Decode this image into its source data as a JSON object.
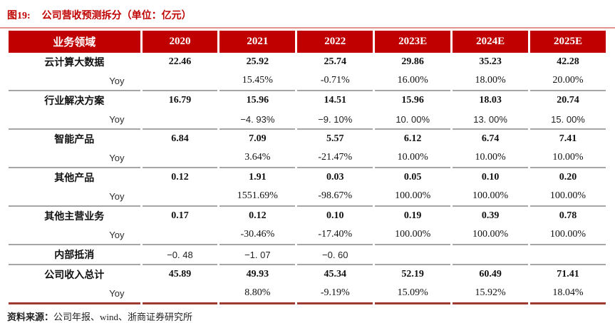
{
  "figure": {
    "label": "图19:",
    "title": "公司营收预测拆分（单位：亿元）"
  },
  "accent_colors": {
    "header_background": "#c00000",
    "title_text": "#c00000",
    "title_rule": "#e2948d",
    "group_separator": "#a6a6a6",
    "table_bottom_border": "#9e3a32"
  },
  "table": {
    "columns": [
      "业务领域",
      "2020",
      "2021",
      "2022",
      "2023E",
      "2024E",
      "2025E"
    ],
    "rows": [
      {
        "name": "云计算大数据",
        "type": "category",
        "sep": false,
        "values": [
          "22.46",
          "25.92",
          "25.74",
          "29.86",
          "35.23",
          "42.28"
        ]
      },
      {
        "name": "Yoy",
        "type": "yoy",
        "sep": true,
        "values": [
          "",
          "15.45%",
          "-0.71%",
          "16.00%",
          "18.00%",
          "20.00%"
        ]
      },
      {
        "name": "行业解决方案",
        "type": "category",
        "sep": false,
        "values": [
          "16.79",
          "15.96",
          "14.51",
          "15.96",
          "18.03",
          "20.74"
        ]
      },
      {
        "name": "Yoy",
        "type": "yoy-alt",
        "sep": true,
        "values": [
          "",
          "−4. 93%",
          "−9. 10%",
          "10. 00%",
          "13. 00%",
          "15. 00%"
        ]
      },
      {
        "name": "智能产品",
        "type": "category",
        "sep": false,
        "values": [
          "6.84",
          "7.09",
          "5.57",
          "6.12",
          "6.74",
          "7.41"
        ]
      },
      {
        "name": "Yoy",
        "type": "yoy",
        "sep": true,
        "values": [
          "",
          "3.64%",
          "-21.47%",
          "10.00%",
          "10.00%",
          "10.00%"
        ]
      },
      {
        "name": "其他产品",
        "type": "category",
        "sep": false,
        "values": [
          "0.12",
          "1.91",
          "0.03",
          "0.05",
          "0.10",
          "0.20"
        ]
      },
      {
        "name": "Yoy",
        "type": "yoy",
        "sep": true,
        "values": [
          "",
          "1551.69%",
          "-98.67%",
          "100.00%",
          "100.00%",
          "100.00%"
        ]
      },
      {
        "name": "其他主营业务",
        "type": "category",
        "sep": false,
        "values": [
          "0.17",
          "0.12",
          "0.10",
          "0.19",
          "0.39",
          "0.78"
        ]
      },
      {
        "name": "Yoy",
        "type": "yoy",
        "sep": true,
        "values": [
          "",
          "-30.46%",
          "-17.40%",
          "100.00%",
          "100.00%",
          "100.00%"
        ]
      },
      {
        "name": "内部抵消",
        "type": "offset",
        "sep": true,
        "values": [
          "−0. 48",
          "−1. 07",
          "−0. 60",
          "",
          "",
          ""
        ]
      },
      {
        "name": "公司收入总计",
        "type": "total",
        "sep": false,
        "values": [
          "45.89",
          "49.93",
          "45.34",
          "52.19",
          "60.49",
          "71.41"
        ]
      },
      {
        "name": "Yoy",
        "type": "total-yoy",
        "sep": false,
        "last": true,
        "values": [
          "",
          "8.80%",
          "-9.19%",
          "15.09%",
          "15.92%",
          "18.04%"
        ]
      }
    ]
  },
  "footer": {
    "source_label": "资料来源：",
    "source_text": "公司年报、wind、浙商证券研究所"
  }
}
